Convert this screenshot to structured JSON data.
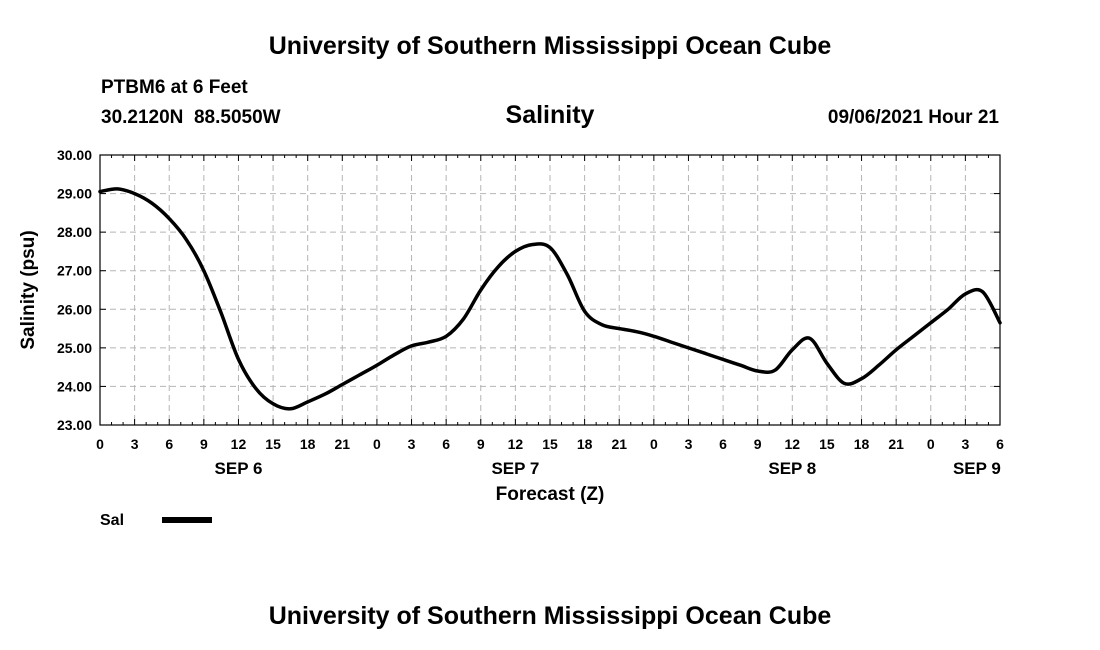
{
  "header": {
    "title": "University of Southern Mississippi Ocean Cube",
    "station": "PTBM6 at 6 Feet",
    "coords": "30.2120N  88.5050W",
    "variable": "Salinity",
    "timestamp": "09/06/2021 Hour 21"
  },
  "footer": {
    "title": "University of Southern Mississippi Ocean Cube"
  },
  "chart_data": {
    "type": "line",
    "title": "Salinity",
    "xlabel": "Forecast (Z)",
    "ylabel": "Salinity (psu)",
    "xlim": [
      0,
      78
    ],
    "ylim": [
      23.0,
      30.0
    ],
    "grid": true,
    "x_ticks": [
      0,
      3,
      6,
      9,
      12,
      15,
      18,
      21,
      24,
      27,
      30,
      33,
      36,
      39,
      42,
      45,
      48,
      51,
      54,
      57,
      60,
      63,
      66,
      69,
      72,
      75,
      78
    ],
    "x_tick_labels": [
      "0",
      "3",
      "6",
      "9",
      "12",
      "15",
      "18",
      "21",
      "0",
      "3",
      "6",
      "9",
      "12",
      "15",
      "18",
      "21",
      "0",
      "3",
      "6",
      "9",
      "12",
      "15",
      "18",
      "21",
      "0",
      "3",
      "6"
    ],
    "date_labels": [
      {
        "x": 12,
        "label": "SEP 6"
      },
      {
        "x": 36,
        "label": "SEP 7"
      },
      {
        "x": 60,
        "label": "SEP 8"
      },
      {
        "x": 76,
        "label": "SEP 9"
      }
    ],
    "y_ticks": [
      23,
      24,
      25,
      26,
      27,
      28,
      29,
      30
    ],
    "y_tick_labels": [
      "23.00",
      "24.00",
      "25.00",
      "26.00",
      "27.00",
      "28.00",
      "29.00",
      "30.00"
    ],
    "legend_placement": "bottom-left",
    "series": [
      {
        "name": "Sal",
        "color": "#000000",
        "x": [
          0,
          1.5,
          3,
          4.5,
          6,
          7.5,
          9,
          10.5,
          12,
          13.5,
          15,
          16.5,
          18,
          19.5,
          21,
          22.5,
          24,
          25.5,
          27,
          28.5,
          30,
          31.5,
          33,
          34.5,
          36,
          37.5,
          39,
          40.5,
          42,
          43.5,
          45,
          46.5,
          48,
          49.5,
          51,
          52.5,
          54,
          55.5,
          57,
          58.5,
          60,
          61.5,
          63,
          64.5,
          66,
          67.5,
          69,
          70.5,
          72,
          73.5,
          75,
          76.5,
          78
        ],
        "y": [
          29.05,
          29.12,
          29.0,
          28.75,
          28.35,
          27.8,
          27.0,
          25.9,
          24.7,
          23.95,
          23.55,
          23.42,
          23.6,
          23.8,
          24.05,
          24.3,
          24.55,
          24.82,
          25.05,
          25.15,
          25.3,
          25.75,
          26.5,
          27.1,
          27.5,
          27.68,
          27.6,
          26.9,
          25.95,
          25.6,
          25.5,
          25.42,
          25.3,
          25.15,
          25.0,
          24.85,
          24.7,
          24.55,
          24.4,
          24.42,
          24.95,
          25.25,
          24.6,
          24.08,
          24.2,
          24.55,
          24.95,
          25.3,
          25.65,
          26.0,
          26.4,
          26.45,
          25.65
        ]
      }
    ]
  }
}
